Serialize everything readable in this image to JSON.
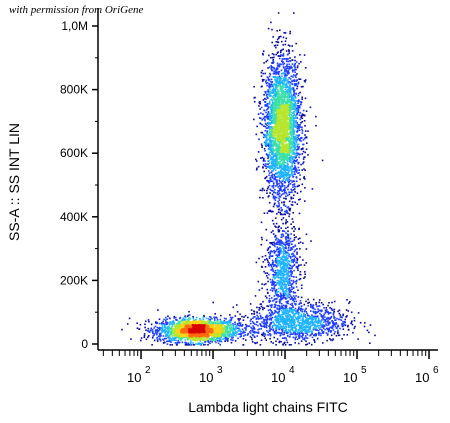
{
  "watermark": "with permission from OriGene",
  "chart_data": {
    "type": "scatter",
    "style": "density dot plot (flow cytometry)",
    "title": "",
    "xlabel": "Lambda light chains FITC",
    "ylabel": "SS-A :: SS INT LIN",
    "x_scale": "log",
    "x_range": [
      1000,
      1000000
    ],
    "y_range": [
      0,
      1000000
    ],
    "x_ticks": [
      {
        "base": "10",
        "exp": "2"
      },
      {
        "base": "10",
        "exp": "3"
      },
      {
        "base": "10",
        "exp": "4"
      },
      {
        "base": "10",
        "exp": "5"
      },
      {
        "base": "10",
        "exp": "6"
      }
    ],
    "y_ticks": [
      {
        "label": "0",
        "value": 0
      },
      {
        "label": "200K",
        "value": 200000
      },
      {
        "label": "400K",
        "value": 400000
      },
      {
        "label": "600K",
        "value": 600000
      },
      {
        "label": "800K",
        "value": 800000
      },
      {
        "label": "1,0M",
        "value": 1000000
      }
    ],
    "populations": [
      {
        "x_center": 600,
        "y_center": 45000,
        "x_spread_log": 0.28,
        "y_spread": 18000,
        "count": 2200,
        "peak_density": "high"
      },
      {
        "x_center": 9000,
        "y_center": 680000,
        "x_spread_log": 0.13,
        "y_spread": 110000,
        "count": 3000,
        "peak_density": "medium"
      },
      {
        "x_center": 9000,
        "y_center": 230000,
        "x_spread_log": 0.12,
        "y_spread": 80000,
        "count": 900,
        "peak_density": "low"
      },
      {
        "x_center": 15000,
        "y_center": 70000,
        "x_spread_log": 0.35,
        "y_spread": 30000,
        "count": 1100,
        "peak_density": "low"
      }
    ],
    "color_scale": [
      "#0a0a9c",
      "#1f3dff",
      "#1fb3ff",
      "#3ee0a8",
      "#b8e62e",
      "#ffd21a",
      "#ff6a10",
      "#d90000"
    ],
    "grid": false,
    "legend": "none"
  }
}
